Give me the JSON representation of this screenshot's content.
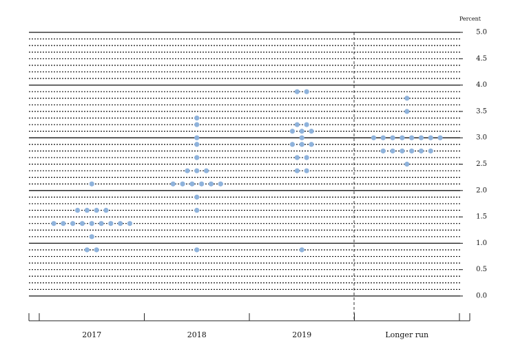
{
  "chart_data": {
    "type": "dot",
    "y_label": "Percent",
    "categories": [
      "2017",
      "2018",
      "2019",
      "Longer run"
    ],
    "values": [
      [
        2.125,
        1.625,
        1.625,
        1.625,
        1.625,
        1.375,
        1.375,
        1.375,
        1.375,
        1.375,
        1.375,
        1.375,
        1.375,
        1.375,
        1.125,
        0.875,
        0.875
      ],
      [
        3.375,
        3.25,
        3.0,
        2.875,
        2.625,
        2.375,
        2.375,
        2.375,
        2.125,
        2.125,
        2.125,
        2.125,
        2.125,
        2.125,
        1.875,
        1.625,
        0.875
      ],
      [
        3.875,
        3.875,
        3.25,
        3.25,
        3.125,
        3.125,
        3.125,
        3.0,
        2.875,
        2.875,
        2.875,
        2.625,
        2.625,
        2.375,
        2.375,
        0.875
      ],
      [
        3.75,
        3.5,
        3.0,
        3.0,
        3.0,
        3.0,
        3.0,
        3.0,
        3.0,
        3.0,
        2.75,
        2.75,
        2.75,
        2.75,
        2.75,
        2.75,
        2.5
      ]
    ],
    "color": "#8fb3dc",
    "ylim": [
      0,
      5
    ],
    "yticks": [
      {
        "value": 0,
        "label": "0.0"
      },
      {
        "value": 0.5,
        "label": "0.5"
      },
      {
        "value": 1,
        "label": "1.0"
      },
      {
        "value": 1.5,
        "label": "1.5"
      },
      {
        "value": 2,
        "label": "2.0"
      },
      {
        "value": 2.5,
        "label": "2.5"
      },
      {
        "value": 3,
        "label": "3.0"
      },
      {
        "value": 3.5,
        "label": "3.5"
      },
      {
        "value": 4,
        "label": "4.0"
      },
      {
        "value": 4.5,
        "label": "4.5"
      },
      {
        "value": 5,
        "label": "5.0"
      }
    ],
    "minor_grid_step": 0.125
  }
}
